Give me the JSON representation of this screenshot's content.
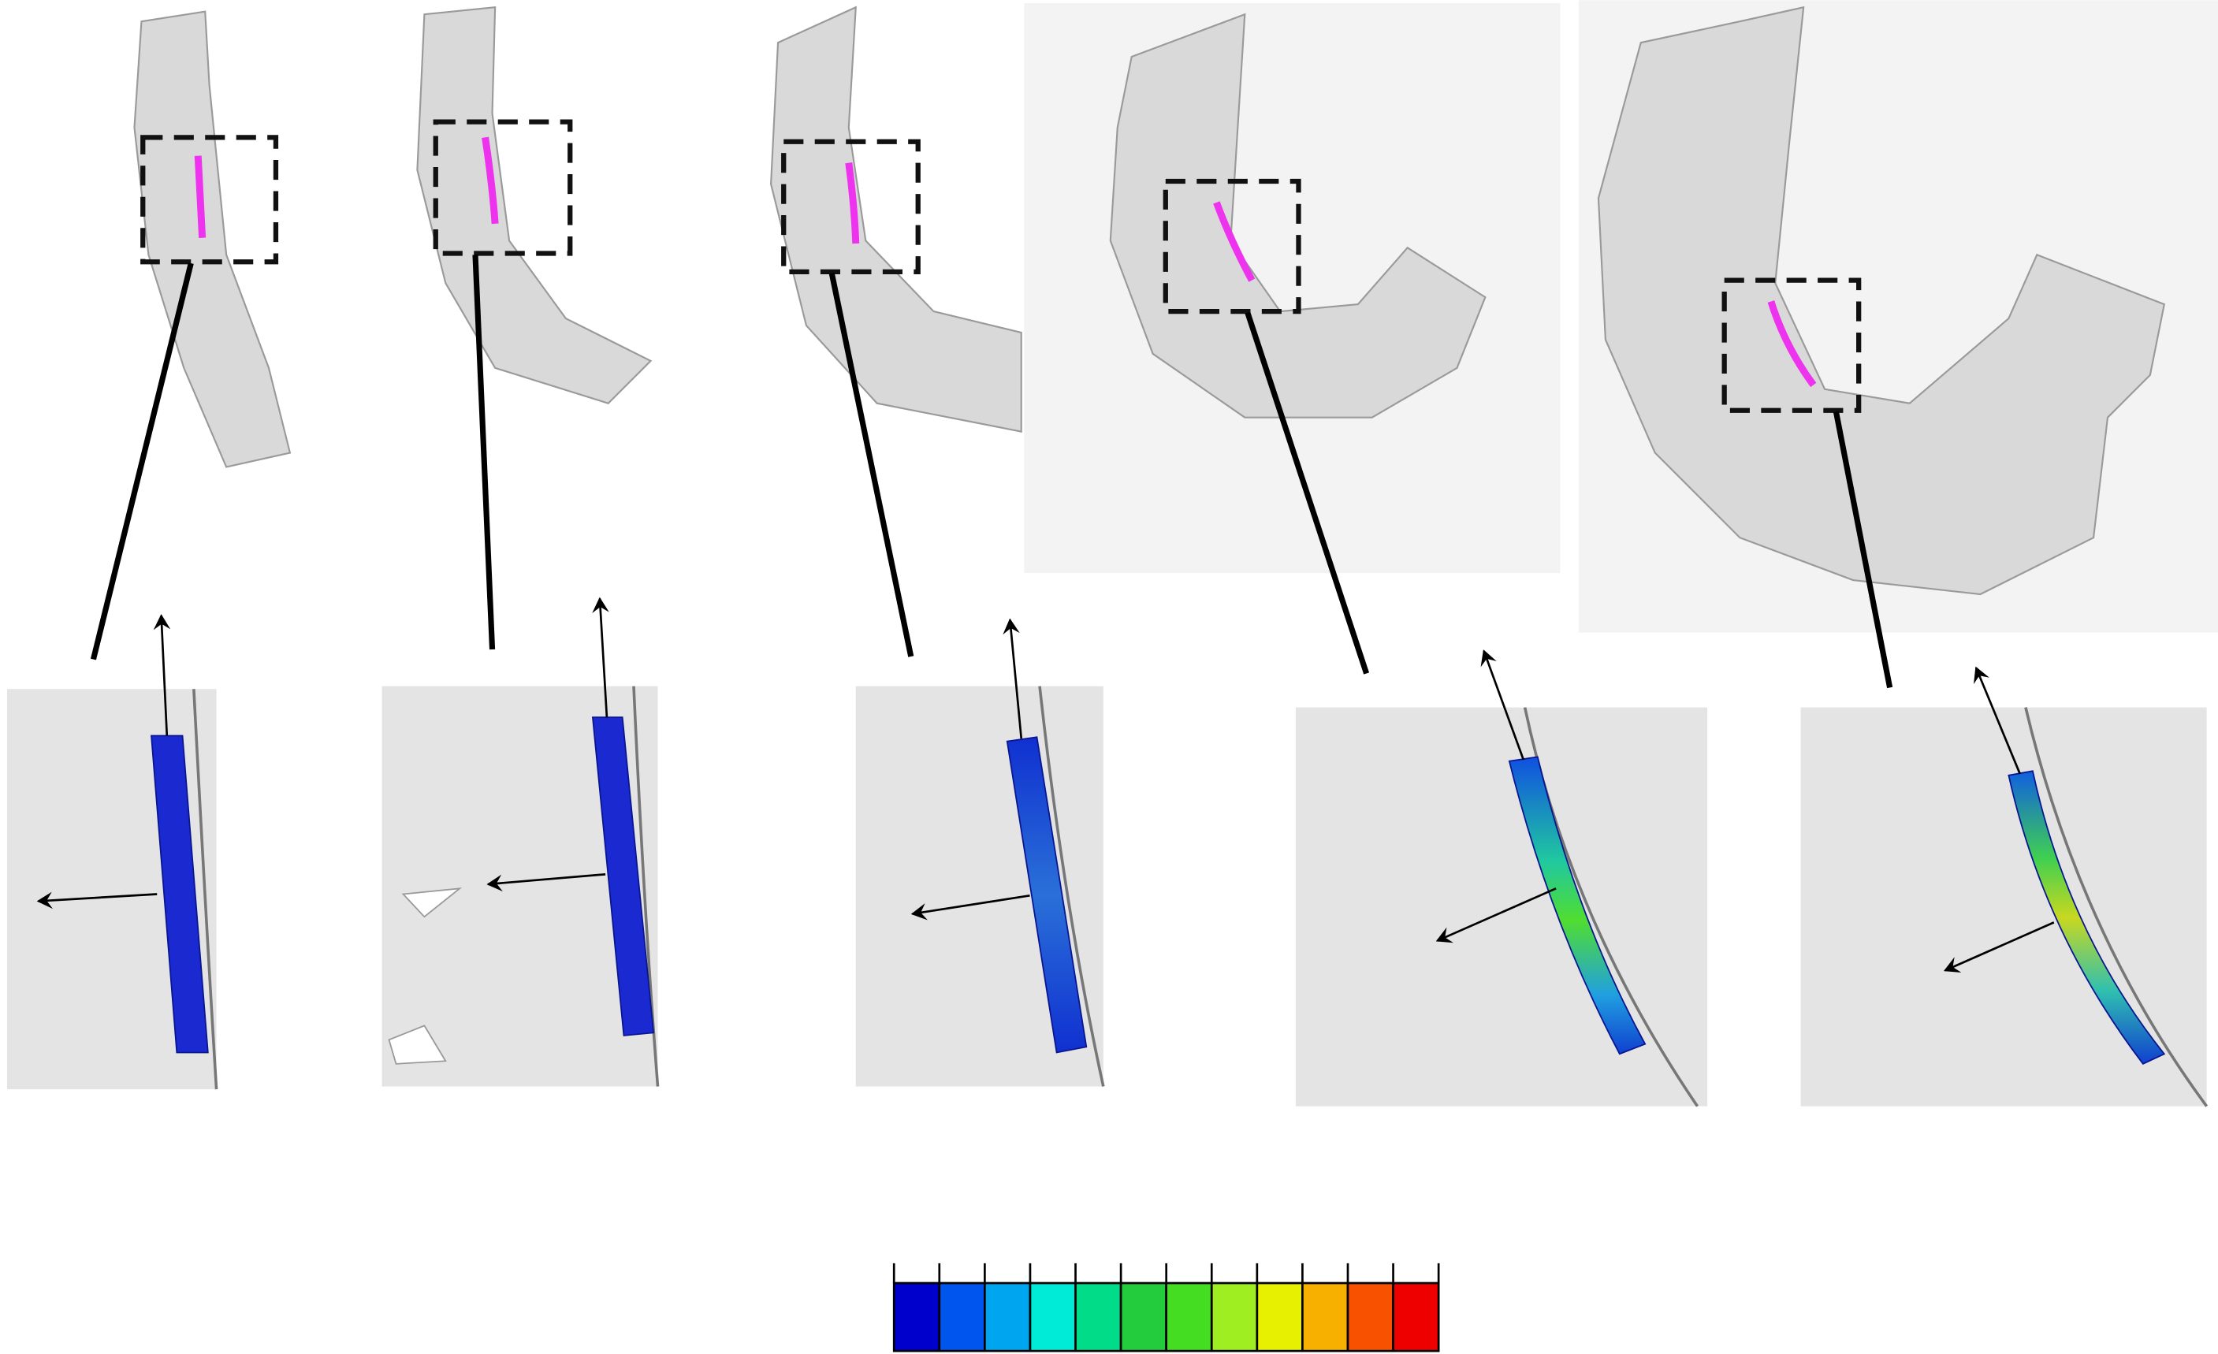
{
  "colorbar": {
    "colors": [
      "#0000cc",
      "#0055ee",
      "#00a5f0",
      "#00ead8",
      "#00dc88",
      "#22cc3c",
      "#44dd22",
      "#9eee22",
      "#e6f000",
      "#f8b000",
      "#f85200",
      "#ee0000"
    ]
  }
}
